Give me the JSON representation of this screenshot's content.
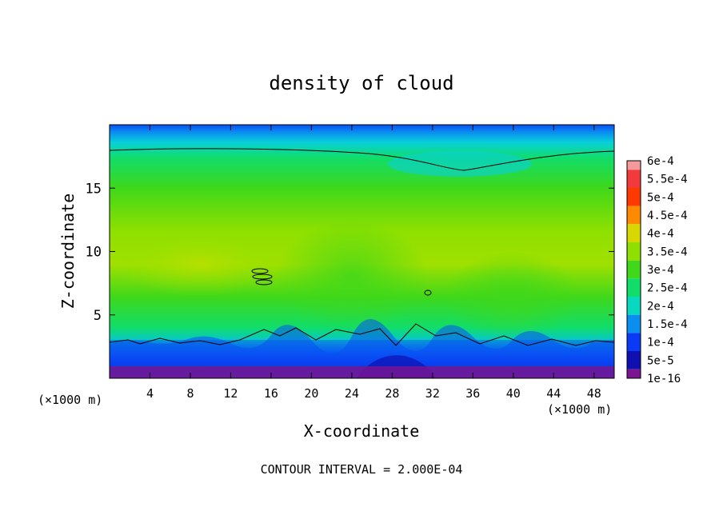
{
  "chart_data": {
    "type": "heatmap",
    "title": "density of cloud",
    "xlabel": "X-coordinate",
    "ylabel": "Z-coordinate",
    "x_unit_label": "(×1000 m)",
    "x_unit_label_right": "(×1000 m)",
    "xlim": [
      0,
      50
    ],
    "ylim": [
      0,
      20
    ],
    "x_ticks": [
      4,
      8,
      12,
      16,
      20,
      24,
      28,
      32,
      36,
      40,
      44,
      48
    ],
    "x_tick_labels": [
      "4",
      "8",
      "12",
      "16",
      "20",
      "24",
      "28",
      "32",
      "36",
      "40",
      "44",
      "48"
    ],
    "y_ticks": [
      5,
      10,
      15
    ],
    "y_tick_labels": [
      "5",
      "10",
      "15"
    ],
    "footer": "CONTOUR INTERVAL = 2.000E-04",
    "contour_interval": 0.0002,
    "colorbar": {
      "labels": [
        "6e-4",
        "5.5e-4",
        "5e-4",
        "4.5e-4",
        "4e-4",
        "3.5e-4",
        "3e-4",
        "2.5e-4",
        "2e-4",
        "1.5e-4",
        "1e-4",
        "5e-5",
        "1e-16"
      ],
      "colors": [
        "#f49a9a",
        "#f23a3a",
        "#ff3a00",
        "#ff8a00",
        "#d8d800",
        "#8fe000",
        "#3fd81a",
        "#10dd6a",
        "#08d8c0",
        "#0a8ef0",
        "#0a3af5",
        "#1010b0",
        "#7a1490"
      ]
    },
    "field_description": [
      {
        "z_range": [
          0,
          1
        ],
        "value_range": [
          1e-16,
          5e-05
        ],
        "note": "purple/blue surface band"
      },
      {
        "z_range": [
          1,
          3
        ],
        "value_range": [
          5e-05,
          0.00015
        ],
        "note": "blue turbulent layer"
      },
      {
        "z_range": [
          3,
          6
        ],
        "value_range": [
          0.0002,
          0.0003
        ],
        "note": "green"
      },
      {
        "z_range": [
          6,
          12
        ],
        "value_range": [
          0.0003,
          0.0004
        ],
        "note": "yellow-green plumes"
      },
      {
        "z_range": [
          12,
          18
        ],
        "value_range": [
          0.0002,
          0.0003
        ],
        "note": "green"
      },
      {
        "z_range": [
          18,
          20
        ],
        "value_range": [
          5e-05,
          0.0002
        ],
        "note": "cyan to blue top"
      }
    ]
  }
}
